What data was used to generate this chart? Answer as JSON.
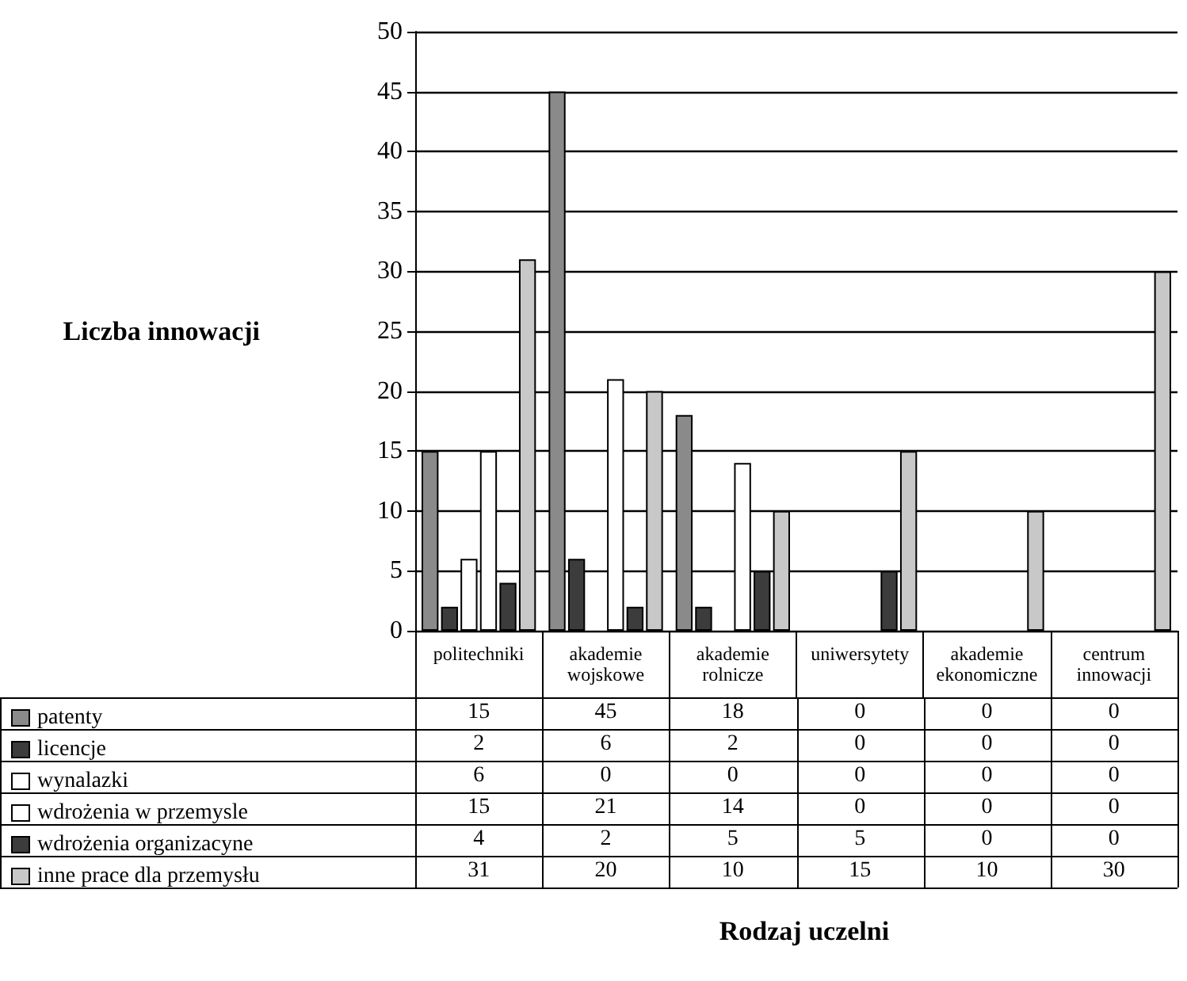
{
  "chart_data": {
    "type": "bar",
    "annotations": [
      "Rodzaj uczelni"
    ],
    "ylabel": "Liczba innowacji",
    "categories": [
      "politechniki",
      "akademie wojskowe",
      "akademie rolnicze",
      "uniwersytety",
      "akademie ekonomiczne",
      "centrum innowacji"
    ],
    "series": [
      {
        "name": "patenty",
        "color": "#8a8a8a",
        "values": [
          15,
          45,
          18,
          0,
          0,
          0
        ]
      },
      {
        "name": "licencje",
        "color": "#3c3c3c",
        "values": [
          2,
          6,
          2,
          0,
          0,
          0
        ]
      },
      {
        "name": "wynalazki",
        "color": "#ffffff",
        "values": [
          6,
          0,
          0,
          0,
          0,
          0
        ]
      },
      {
        "name": "wdrożenia w przemysle",
        "color": "#ffffff",
        "values": [
          15,
          21,
          14,
          0,
          0,
          0
        ]
      },
      {
        "name": "wdrożenia organizacyne",
        "color": "#3c3c3c",
        "values": [
          4,
          2,
          5,
          5,
          0,
          0
        ]
      },
      {
        "name": "inne prace dla przemysłu",
        "color": "#c8c8c8",
        "values": [
          31,
          20,
          10,
          15,
          10,
          30
        ]
      }
    ],
    "ylim": [
      0,
      50
    ],
    "yticks": [
      0,
      5,
      10,
      15,
      20,
      25,
      30,
      35,
      40,
      45,
      50
    ],
    "grid": "y",
    "legend": "bottom left",
    "data_labels": true
  }
}
